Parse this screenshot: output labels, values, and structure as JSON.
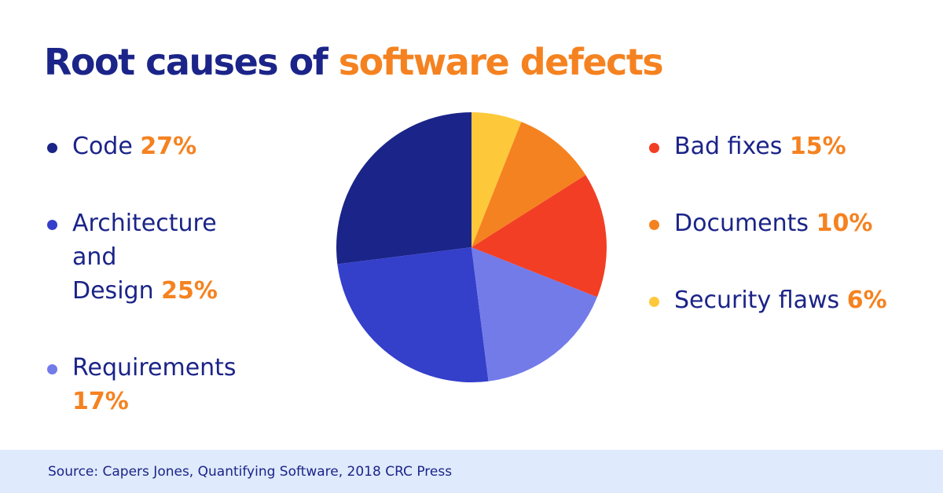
{
  "title": {
    "part1": "Root causes of ",
    "part2": "software defects"
  },
  "chart_data": {
    "type": "pie",
    "title": "Root causes of software defects",
    "slices": [
      {
        "label": "Code",
        "value": 27,
        "color": "#1b2488"
      },
      {
        "label": "Architecture and Design",
        "value": 25,
        "color": "#343fca"
      },
      {
        "label": "Requirements",
        "value": 17,
        "color": "#737be9"
      },
      {
        "label": "Bad fixes",
        "value": 15,
        "color": "#f23e25"
      },
      {
        "label": "Documents",
        "value": 10,
        "color": "#f58220"
      },
      {
        "label": "Security flaws",
        "value": 6,
        "color": "#fdc93b"
      }
    ]
  },
  "legend": [
    {
      "name": "Code",
      "sep": " ",
      "pct": "27%",
      "color": "#1b2488"
    },
    {
      "name": "Architecture\nand\nDesign",
      "sep": "  ",
      "pct": "25%",
      "color": "#343fca"
    },
    {
      "name": "Requirements",
      "sep": "\n",
      "pct": "17%",
      "color": "#737be9"
    },
    {
      "name": "Bad fixes",
      "sep": " ",
      "pct": "15%",
      "color": "#f23e25"
    },
    {
      "name": "Documents",
      "sep": " ",
      "pct": "10%",
      "color": "#f58220"
    },
    {
      "name": "Security flaws",
      "sep": " ",
      "pct": "6%",
      "color": "#fdc93b"
    }
  ],
  "source": "Source: Capers Jones, Quantifying Software, 2018 CRC Press"
}
